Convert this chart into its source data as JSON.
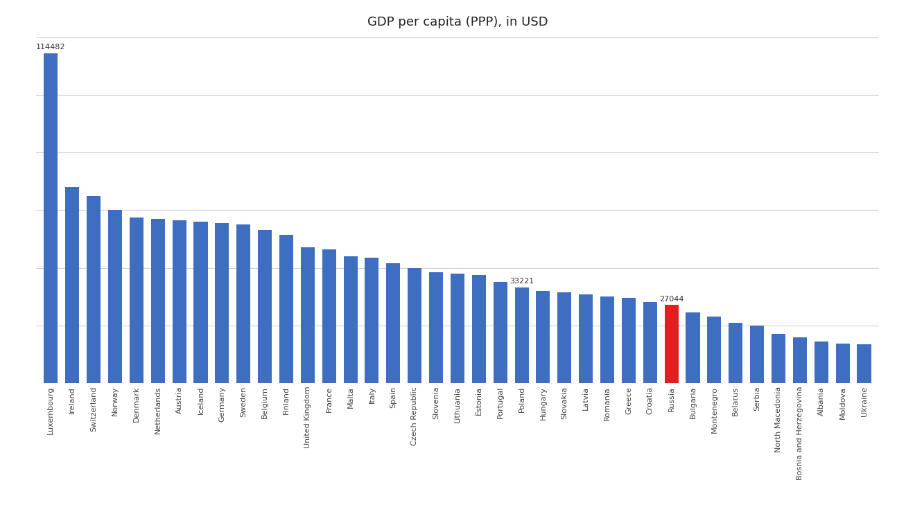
{
  "title": "GDP per capita (PPP), in USD",
  "categories": [
    "Luxembourg",
    "Ireland",
    "Switzerland",
    "Norway",
    "Denmark",
    "Netherlands",
    "Austria",
    "Iceland",
    "Germany",
    "Sweden",
    "Belgium",
    "Finland",
    "United Kingdom",
    "France",
    "Malta",
    "Italy",
    "Spain",
    "Czech Republic",
    "Slovenia",
    "Lithuania",
    "Estonia",
    "Portugal",
    "Poland",
    "Hungary",
    "Slovakia",
    "Latvia",
    "Romania",
    "Greece",
    "Croatia",
    "Russia",
    "Bulgaria",
    "Montenegro",
    "Belarus",
    "Serbia",
    "North Macedonia",
    "Bosnia and Herzegovina",
    "Albania",
    "Moldova",
    "Ukraine"
  ],
  "values": [
    114482,
    68000,
    65000,
    60000,
    57500,
    57000,
    56500,
    56000,
    55500,
    55000,
    53000,
    51500,
    47000,
    46500,
    44000,
    43500,
    41500,
    40000,
    38500,
    38000,
    37500,
    35000,
    33221,
    32000,
    31500,
    30800,
    30000,
    29500,
    28000,
    27044,
    24500,
    23000,
    20800,
    20000,
    17000,
    15800,
    14400,
    13600,
    13500
  ],
  "bar_color_default": "#3D6EBF",
  "bar_color_highlight": "#E02020",
  "highlight_country": "Russia",
  "annotate_countries": [
    "Luxembourg",
    "Poland",
    "Russia"
  ],
  "annotate_values": [
    114482,
    33221,
    27044
  ],
  "background_color": "#FFFFFF",
  "grid_color": "#D0D0D0",
  "title_fontsize": 13,
  "tick_fontsize": 8,
  "annotation_fontsize": 8,
  "ylim_max": 120000,
  "show_y_axis_labels": false
}
